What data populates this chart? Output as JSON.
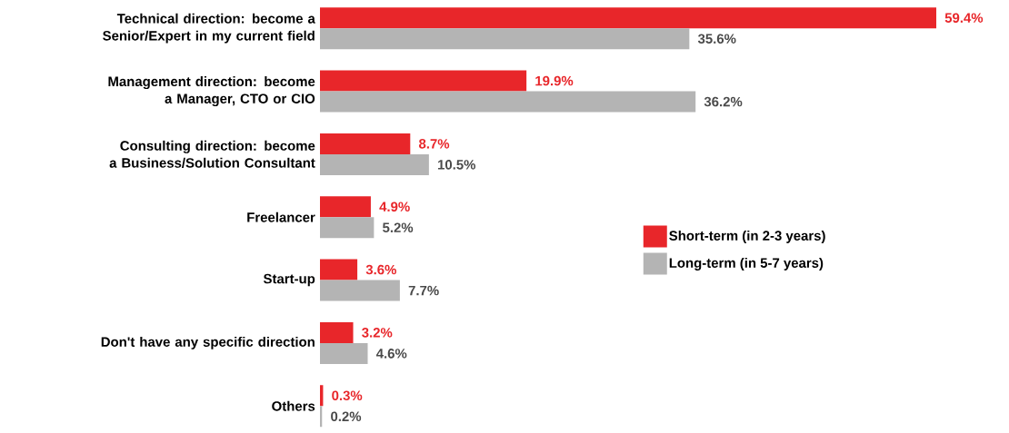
{
  "chart_data": {
    "type": "bar",
    "orientation": "horizontal",
    "categories": [
      "Technical direction: become a Senior/Expert in my current field",
      "Management direction: become a Manager, CTO or CIO",
      "Consulting direction: become a Business/Solution Consultant",
      "Freelancer",
      "Start-up",
      "Don't have any specific direction",
      "Others"
    ],
    "series": [
      {
        "name": "Short-term (in 2-3 years)",
        "color": "#e8262a",
        "values": [
          59.4,
          19.9,
          8.7,
          4.9,
          3.6,
          3.2,
          0.3
        ],
        "value_labels": [
          "59.4%",
          "19.9%",
          "8.7%",
          "4.9%",
          "3.6%",
          "3.2%",
          "0.3%"
        ]
      },
      {
        "name": "Long-term (in 5-7 years)",
        "color": "#b4b4b4",
        "values": [
          35.6,
          36.2,
          10.5,
          5.2,
          7.7,
          4.6,
          0.2
        ],
        "value_labels": [
          "35.6%",
          "36.2%",
          "10.5%",
          "5.2%",
          "7.7%",
          "4.6%",
          "0.2%"
        ]
      }
    ],
    "legend": "right"
  }
}
